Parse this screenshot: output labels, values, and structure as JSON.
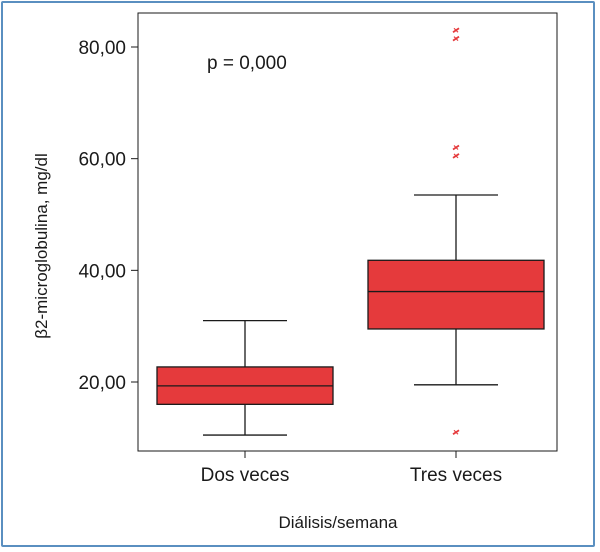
{
  "chart_data": {
    "type": "box",
    "annotation": "p = 0,000",
    "xlabel": "Diálisis/semana",
    "ylabel": "β2-microglobulina, mg/dl",
    "ylim": [
      8,
      85
    ],
    "yticks": [
      20,
      40,
      60,
      80
    ],
    "ytick_labels": [
      "20,00",
      "40,00",
      "60,00",
      "80,00"
    ],
    "categories": [
      "Dos veces",
      "Tres veces"
    ],
    "boxes": [
      {
        "category": "Dos veces",
        "whisker_low": 10.5,
        "q1": 16.0,
        "median": 19.3,
        "q3": 22.7,
        "whisker_high": 31.0,
        "outliers": []
      },
      {
        "category": "Tres veces",
        "whisker_low": 19.5,
        "q1": 29.5,
        "median": 36.2,
        "q3": 41.8,
        "whisker_high": 53.5,
        "outliers": [
          11.0,
          60.5,
          62.0,
          81.5,
          83.0
        ]
      }
    ],
    "colors": {
      "box_fill": "#e53a3c",
      "outlier": "#e53a3c",
      "line": "#1a1a1a",
      "frame": "#5a8fc0"
    }
  }
}
